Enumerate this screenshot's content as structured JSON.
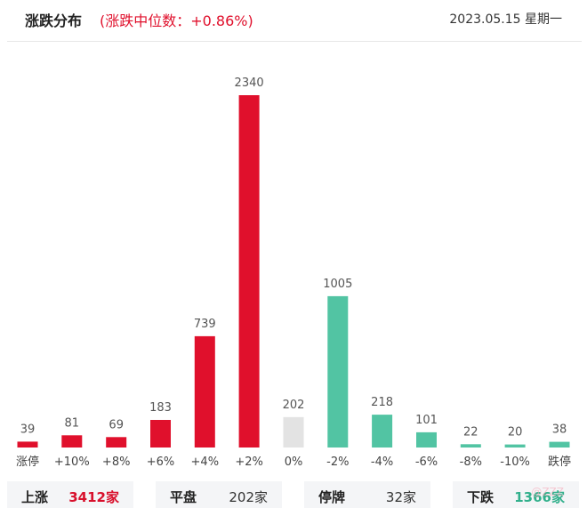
{
  "header": {
    "title": "涨跌分布",
    "subtitle": "(涨跌中位数：+0.86%)",
    "date": "2023.05.15 星期一"
  },
  "colors": {
    "up": "#e0102c",
    "flat": "#e3e3e3",
    "down": "#52c4a3"
  },
  "chart_data": {
    "type": "bar",
    "categories": [
      "涨停",
      "+10%",
      "+8%",
      "+6%",
      "+4%",
      "+2%",
      "0%",
      "-2%",
      "-4%",
      "-6%",
      "-8%",
      "-10%",
      "跌停"
    ],
    "values": [
      39,
      81,
      69,
      183,
      739,
      2340,
      202,
      1005,
      218,
      101,
      22,
      20,
      38
    ],
    "bar_colors": [
      "up",
      "up",
      "up",
      "up",
      "up",
      "up",
      "flat",
      "down",
      "down",
      "down",
      "down",
      "down",
      "down"
    ],
    "ylim": [
      0,
      2340
    ]
  },
  "stats": [
    {
      "label": "上涨",
      "value": "3412家",
      "tone": "up"
    },
    {
      "label": "平盘",
      "value": "202家",
      "tone": "flat"
    },
    {
      "label": "停牌",
      "value": "32家",
      "tone": "flat"
    },
    {
      "label": "下跌",
      "value": "1366家",
      "tone": "down"
    }
  ],
  "watermark": "@ZZZ"
}
